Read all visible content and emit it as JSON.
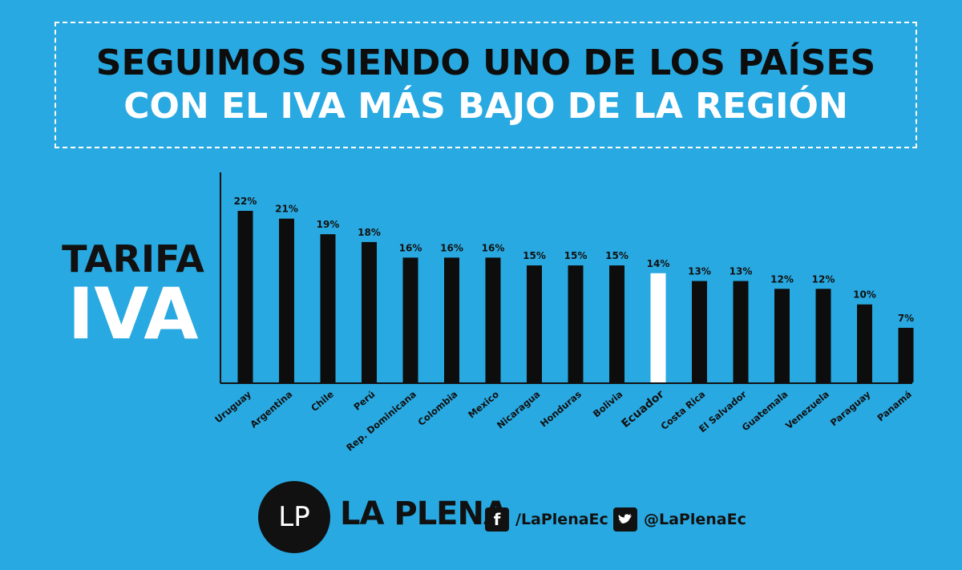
{
  "header": {
    "line1": "SEGUIMOS SIENDO UNO DE LOS PAÍSES",
    "line2": "CON EL IVA MÁS BAJO DE LA REGIÓN"
  },
  "side_label": {
    "line1": "TARIFA",
    "line2": "IVA"
  },
  "chart_data": {
    "type": "bar",
    "categories": [
      "Uruguay",
      "Argentina",
      "Chile",
      "Perú",
      "Rep. Dominicana",
      "Colombia",
      "Mexico",
      "Nicaragua",
      "Honduras",
      "Bolivia",
      "Ecuador",
      "Costa Rica",
      "El Salvador",
      "Guatemala",
      "Venezuela",
      "Paraguay",
      "Panamá"
    ],
    "values": [
      22,
      21,
      19,
      18,
      16,
      16,
      16,
      15,
      15,
      15,
      14,
      13,
      13,
      12,
      12,
      10,
      7
    ],
    "value_labels": [
      "22%",
      "21%",
      "19%",
      "18%",
      "16%",
      "16%",
      "16%",
      "15%",
      "15%",
      "15%",
      "14%",
      "13%",
      "13%",
      "12%",
      "12%",
      "10%",
      "7%"
    ],
    "highlight": "Ecuador",
    "ylim": [
      0,
      25
    ],
    "grid": false,
    "colors": {
      "bar": "#0d0d0d",
      "highlight": "#ffffff",
      "background": "#29a9e1"
    }
  },
  "footer": {
    "logo_text": "LP",
    "brand": "LA PLENA",
    "facebook": {
      "icon": "facebook-icon",
      "handle": "/LaPlenaEc"
    },
    "twitter": {
      "icon": "twitter-icon",
      "handle": "@LaPlenaEc"
    }
  }
}
